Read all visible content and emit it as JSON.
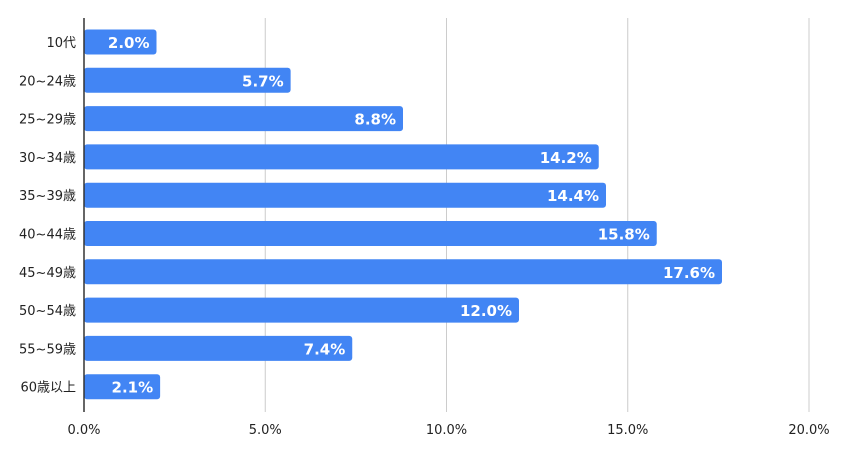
{
  "chart_data": {
    "type": "bar",
    "orientation": "horizontal",
    "categories": [
      "10代",
      "20~24歳",
      "25~29歳",
      "30~34歳",
      "35~39歳",
      "40~44歳",
      "45~49歳",
      "50~54歳",
      "55~59歳",
      "60歳以上"
    ],
    "values": [
      2.0,
      5.7,
      8.8,
      14.2,
      14.4,
      15.8,
      17.6,
      12.0,
      7.4,
      2.1
    ],
    "data_labels": [
      "2.0%",
      "5.7%",
      "8.8%",
      "14.2%",
      "14.4%",
      "15.8%",
      "17.6%",
      "12.0%",
      "7.4%",
      "2.1%"
    ],
    "x_ticks": [
      0,
      5,
      10,
      15,
      20
    ],
    "x_tick_labels": [
      "0.0%",
      "5.0%",
      "10.0%",
      "15.0%",
      "20.0%"
    ],
    "xlim": [
      0,
      20
    ],
    "title": "",
    "xlabel": "",
    "ylabel": "",
    "grid": "vertical",
    "legend": "none",
    "colors": {
      "bar": "#4285f4",
      "grid": "#cccccc",
      "axis": "#333333",
      "label_text": "#222222",
      "data_label_text": "#ffffff"
    }
  }
}
